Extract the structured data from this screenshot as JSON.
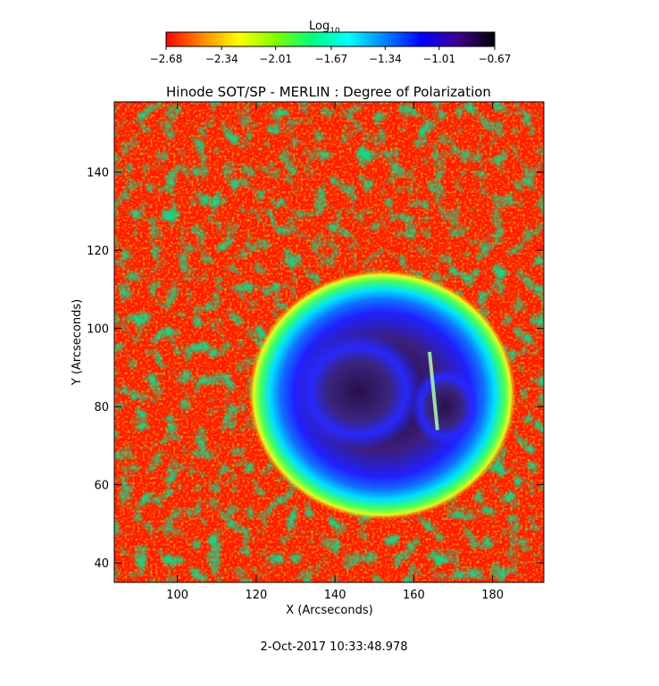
{
  "colorbar": {
    "title": "Log",
    "title_subscript": "10",
    "tick_labels": [
      "-2.68",
      "-2.34",
      "-2.01",
      "-1.67",
      "-1.34",
      "-1.01",
      "-0.67"
    ],
    "range": [
      -2.68,
      -0.67
    ],
    "colormap": [
      "#ff0000",
      "#ff8c00",
      "#ffff00",
      "#7fff00",
      "#00ff7f",
      "#00ffff",
      "#0080ff",
      "#0000ff",
      "#400090",
      "#000000"
    ]
  },
  "chart_data": {
    "type": "heatmap",
    "title": "Hinode SOT/SP - MERLIN : Degree of Polarization",
    "xlabel": "X (Arcseconds)",
    "ylabel": "Y (Arcseconds)",
    "xlim": [
      84,
      193
    ],
    "ylim": [
      35,
      158
    ],
    "x_ticks": [
      100,
      120,
      140,
      160,
      180
    ],
    "y_ticks": [
      40,
      60,
      80,
      100,
      120,
      140
    ],
    "value_range": [
      -2.68,
      -0.67
    ],
    "features": [
      {
        "name": "umbra",
        "x": 146,
        "y": 84,
        "value": -0.67
      },
      {
        "name": "umbra-east",
        "x": 168,
        "y": 80,
        "value": -0.7
      },
      {
        "name": "penumbra",
        "x": 152,
        "y": 82,
        "value": -1.0
      }
    ]
  },
  "footer": {
    "timestamp": "2-Oct-2017 10:33:48.978"
  }
}
